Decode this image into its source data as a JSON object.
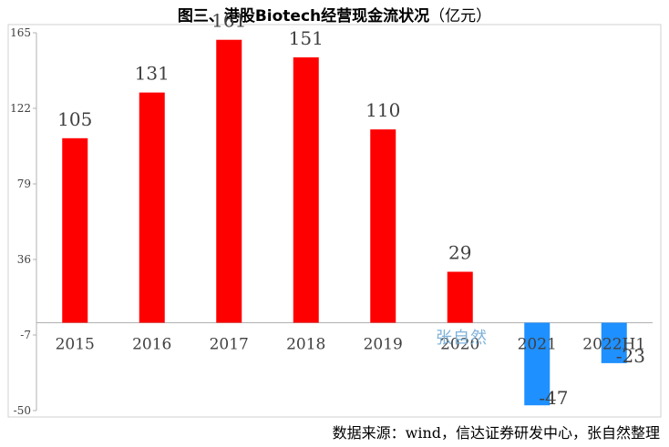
{
  "chart_title": "图三、港股Biotech经营现金流状况",
  "chart_unit": "（亿元）",
  "source_text": "数据来源：wind，信达证券研发中心，张自然整理",
  "watermark_text": "张自然",
  "colors": {
    "positive": "#ff0000",
    "negative": "#1e90ff",
    "axis": "#b0b0b0",
    "text": "#404040"
  },
  "chart_data": {
    "type": "bar",
    "categories": [
      "2015",
      "2016",
      "2017",
      "2018",
      "2019",
      "2020",
      "2021",
      "2022H1"
    ],
    "values": [
      105,
      131,
      161,
      151,
      110,
      29,
      -47,
      -23
    ],
    "y_ticks": [
      165,
      122,
      79,
      36,
      -7,
      -50
    ],
    "ylim": [
      -50,
      165
    ],
    "grid": false,
    "legend": "none"
  }
}
